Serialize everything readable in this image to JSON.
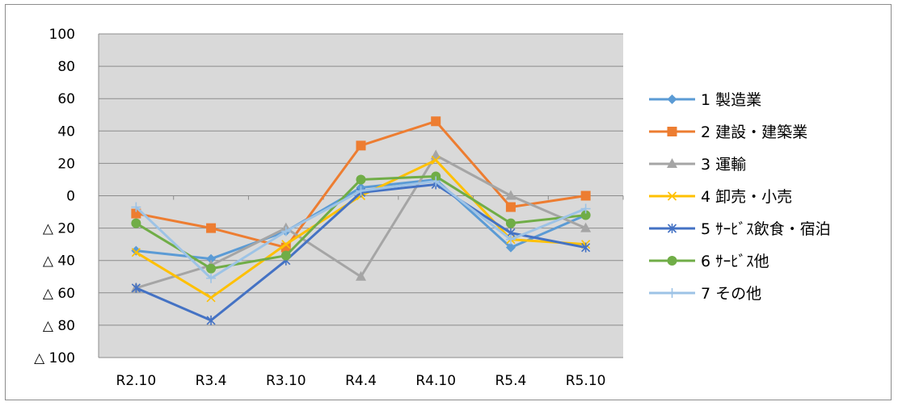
{
  "chart_data": {
    "type": "line",
    "categories": [
      "R2.10",
      "R3.4",
      "R3.10",
      "R4.4",
      "R4.10",
      "R5.4",
      "R5.10"
    ],
    "ylim": [
      -100,
      100
    ],
    "yticks": [
      {
        "value": 100,
        "label": "100"
      },
      {
        "value": 80,
        "label": "80"
      },
      {
        "value": 60,
        "label": "60"
      },
      {
        "value": 40,
        "label": "40"
      },
      {
        "value": 20,
        "label": "20"
      },
      {
        "value": 0,
        "label": "0"
      },
      {
        "value": -20,
        "label": "△ 20"
      },
      {
        "value": -40,
        "label": "△ 40"
      },
      {
        "value": -60,
        "label": "△ 60"
      },
      {
        "value": -80,
        "label": "△ 80"
      },
      {
        "value": -100,
        "label": "△ 100"
      }
    ],
    "grid": true,
    "plot_background": "#d9d9d9",
    "legend_position": "right",
    "series": [
      {
        "name": "1 製造業",
        "color": "#5b9bd5",
        "marker": "diamond",
        "values": [
          -34,
          -39,
          -22,
          5,
          10,
          -32,
          -12
        ]
      },
      {
        "name": "2 建設・建築業",
        "color": "#ed7d31",
        "marker": "square",
        "values": [
          -11,
          -20,
          -32,
          31,
          46,
          -7,
          0
        ]
      },
      {
        "name": "3 運輸",
        "color": "#a5a5a5",
        "marker": "triangle",
        "values": [
          -57,
          -43,
          -20,
          -50,
          25,
          0,
          -20
        ]
      },
      {
        "name": "4 卸売・小売",
        "color": "#ffc000",
        "marker": "x",
        "values": [
          -35,
          -63,
          -30,
          0,
          22,
          -27,
          -30
        ]
      },
      {
        "name": "5 ｻｰﾋﾞｽ飲食・宿泊",
        "color": "#4472c4",
        "marker": "star",
        "values": [
          -57,
          -77,
          -40,
          2,
          7,
          -23,
          -32
        ]
      },
      {
        "name": "6 ｻｰﾋﾞｽ他",
        "color": "#70ad47",
        "marker": "circle",
        "values": [
          -17,
          -45,
          -37,
          10,
          12,
          -17,
          -12
        ]
      },
      {
        "name": "7 その他",
        "color": "#9dc3e6",
        "marker": "plus",
        "values": [
          -7,
          -51,
          -22,
          3,
          9,
          -27,
          -8
        ]
      }
    ]
  }
}
